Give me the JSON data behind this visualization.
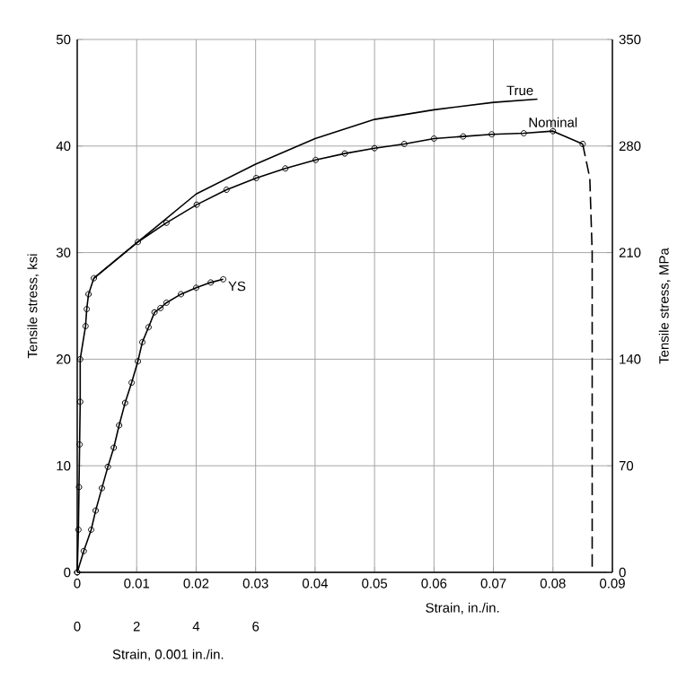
{
  "chart_data": {
    "type": "line",
    "xlabel": "Strain, in./in.",
    "x2label": "Strain, 0.001 in./in.",
    "ylabel": "Tensile stress, ksi",
    "y2label": "Tensile stress, MPa",
    "xlim": [
      0,
      0.09
    ],
    "xticks": [
      0,
      0.01,
      0.02,
      0.03,
      0.04,
      0.05,
      0.06,
      0.07,
      0.08,
      0.09
    ],
    "x2lim": [
      0,
      18
    ],
    "x2ticks": [
      0,
      2,
      4,
      6
    ],
    "ylim": [
      0,
      50
    ],
    "yticks": [
      0,
      10,
      20,
      30,
      40,
      50
    ],
    "y2lim": [
      0,
      350
    ],
    "y2ticks": [
      0,
      70,
      140,
      210,
      280,
      350
    ],
    "grid": true,
    "annotations": [
      {
        "text": "YS",
        "x": 0.025,
        "y": 27.5
      }
    ],
    "series": [
      {
        "name": "True",
        "color": "#000000",
        "marker": "none",
        "line_style": "solid",
        "x": [
          0.0028,
          0.0102,
          0.02,
          0.03,
          0.04,
          0.05,
          0.06,
          0.07,
          0.0774
        ],
        "values": [
          27.6,
          31.0,
          35.5,
          38.3,
          40.7,
          42.5,
          43.4,
          44.1,
          44.4
        ]
      },
      {
        "name": "Nominal",
        "color": "#000000",
        "marker": "circle",
        "line_style": "solid",
        "x": [
          0,
          0.0002,
          0.0003,
          0.0004,
          0.0005,
          0.0005,
          0.0014,
          0.0016,
          0.0019,
          0.0028,
          0.0102,
          0.015,
          0.0201,
          0.0251,
          0.0301,
          0.035,
          0.0401,
          0.045,
          0.05,
          0.055,
          0.06,
          0.0649,
          0.0697,
          0.0751,
          0.08,
          0.085
        ],
        "values": [
          0,
          4,
          8,
          12,
          16,
          20,
          23.1,
          24.7,
          26.1,
          27.6,
          31.0,
          32.8,
          34.5,
          35.9,
          37.0,
          37.9,
          38.7,
          39.3,
          39.8,
          40.2,
          40.7,
          40.9,
          41.1,
          41.2,
          41.4,
          40.2
        ]
      },
      {
        "color": "#000000",
        "marker": "none",
        "line_style": "dashed",
        "x": [
          0.085,
          0.0862,
          0.0866,
          0.0866
        ],
        "values": [
          40.2,
          37,
          30,
          0
        ]
      },
      {
        "color": "#000000",
        "marker": "circle",
        "line_style": "solid",
        "axis": "x2",
        "x": [
          0,
          0.22,
          0.47,
          0.62,
          0.83,
          1.03,
          1.23,
          1.41,
          1.61,
          1.83,
          2.04,
          2.19,
          2.4,
          2.6,
          2.8,
          3.0,
          3.49,
          4.0,
          4.49,
          4.91
        ],
        "values": [
          0,
          2.0,
          4.0,
          5.8,
          7.9,
          9.9,
          11.7,
          13.8,
          15.9,
          17.8,
          19.8,
          21.6,
          23.0,
          24.4,
          24.8,
          25.3,
          26.1,
          26.7,
          27.2,
          27.5
        ]
      }
    ]
  }
}
